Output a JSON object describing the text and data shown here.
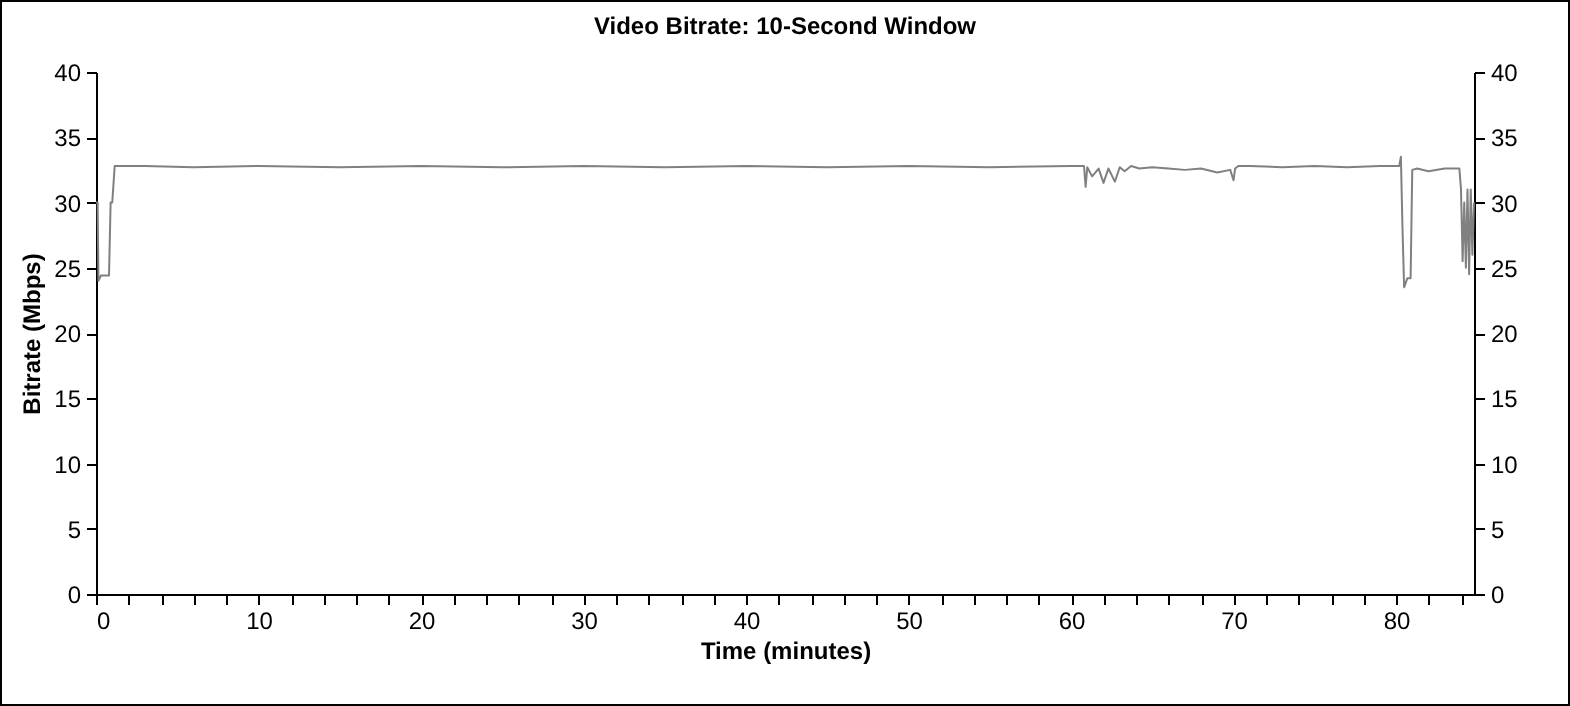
{
  "chart_data": {
    "type": "line",
    "title": "Video Bitrate: 10-Second Window",
    "xlabel": "Time (minutes)",
    "ylabel": "Bitrate (Mbps)",
    "x": [
      0,
      0.1,
      0.15,
      0.3,
      0.8,
      0.9,
      1.0,
      1.15,
      3,
      6,
      10,
      15,
      20,
      25,
      30,
      35,
      40,
      45,
      50,
      55,
      60,
      60.8,
      60.9,
      61.0,
      61.3,
      61.7,
      62.0,
      62.3,
      62.7,
      63.0,
      63.3,
      63.7,
      64.2,
      65,
      66,
      67,
      68,
      69,
      69.8,
      70.0,
      70.1,
      70.3,
      71,
      73,
      75,
      77,
      79,
      80.2,
      80.3,
      80.4,
      80.5,
      80.7,
      80.9,
      81.0,
      81.3,
      82,
      83,
      83.9,
      84.0,
      84.1,
      84.2,
      84.3,
      84.4,
      84.5,
      84.6,
      84.7,
      84.8
    ],
    "series": [
      {
        "color": "#808080",
        "values": [
          30,
          30,
          24,
          24.4,
          24.4,
          30,
          30,
          32.8,
          32.8,
          32.7,
          32.8,
          32.7,
          32.8,
          32.7,
          32.8,
          32.7,
          32.8,
          32.7,
          32.8,
          32.7,
          32.8,
          32.8,
          31.2,
          32.7,
          32.0,
          32.6,
          31.5,
          32.6,
          31.6,
          32.7,
          32.4,
          32.8,
          32.6,
          32.7,
          32.6,
          32.5,
          32.6,
          32.3,
          32.5,
          31.7,
          32.6,
          32.8,
          32.8,
          32.7,
          32.8,
          32.7,
          32.8,
          32.8,
          33.5,
          28,
          23.5,
          24.2,
          24.2,
          32.5,
          32.6,
          32.4,
          32.6,
          32.6,
          31,
          25.5,
          30,
          25,
          31,
          24.5,
          31,
          26,
          30
        ]
      }
    ],
    "xlim": [
      0,
      84.8
    ],
    "ylim": [
      0,
      40
    ],
    "y2lim": [
      0,
      40
    ],
    "xticks": [
      0,
      {
        "value": 2,
        "label": null
      },
      {
        "value": 4,
        "label": null
      },
      {
        "value": 6,
        "label": null
      },
      {
        "value": 8,
        "label": null
      },
      10,
      {
        "value": 12,
        "label": null
      },
      {
        "value": 14,
        "label": null
      },
      {
        "value": 16,
        "label": null
      },
      {
        "value": 18,
        "label": null
      },
      20,
      {
        "value": 22,
        "label": null
      },
      {
        "value": 24,
        "label": null
      },
      {
        "value": 26,
        "label": null
      },
      {
        "value": 28,
        "label": null
      },
      30,
      {
        "value": 32,
        "label": null
      },
      {
        "value": 34,
        "label": null
      },
      {
        "value": 36,
        "label": null
      },
      {
        "value": 38,
        "label": null
      },
      40,
      {
        "value": 42,
        "label": null
      },
      {
        "value": 44,
        "label": null
      },
      {
        "value": 46,
        "label": null
      },
      {
        "value": 48,
        "label": null
      },
      50,
      {
        "value": 52,
        "label": null
      },
      {
        "value": 54,
        "label": null
      },
      {
        "value": 56,
        "label": null
      },
      {
        "value": 58,
        "label": null
      },
      60,
      {
        "value": 62,
        "label": null
      },
      {
        "value": 64,
        "label": null
      },
      {
        "value": 66,
        "label": null
      },
      {
        "value": 68,
        "label": null
      },
      70,
      {
        "value": 72,
        "label": null
      },
      {
        "value": 74,
        "label": null
      },
      {
        "value": 76,
        "label": null
      },
      {
        "value": 78,
        "label": null
      },
      80,
      {
        "value": 82,
        "label": null
      },
      {
        "value": 84,
        "label": null
      }
    ],
    "yticks": [
      0,
      5,
      10,
      15,
      20,
      25,
      30,
      35,
      40
    ],
    "y2ticks": [
      0,
      5,
      10,
      15,
      20,
      25,
      30,
      35,
      40
    ],
    "grid": false,
    "marker": "none",
    "line_style": "solid"
  }
}
